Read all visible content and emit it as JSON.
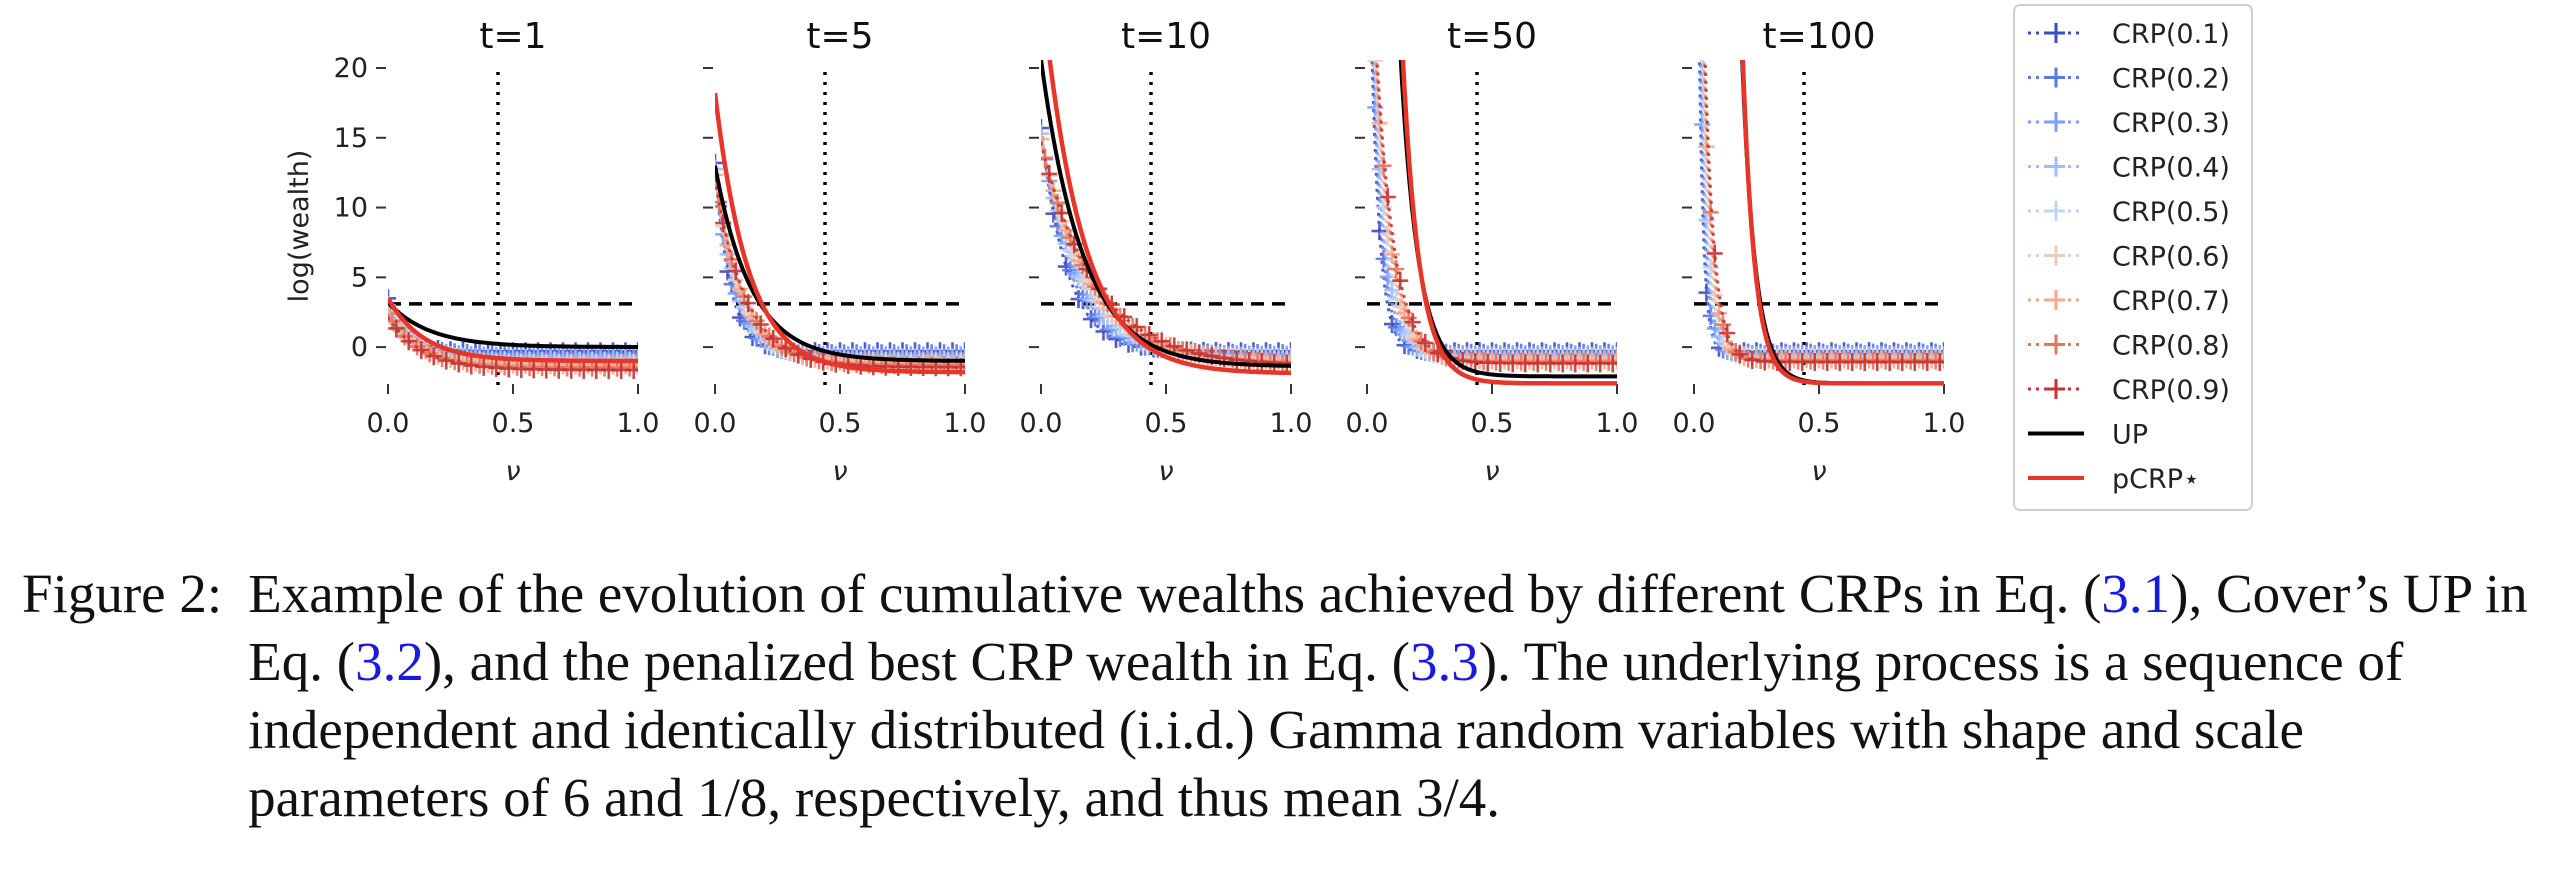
{
  "chart_data": {
    "type": "line",
    "ylabel": "log(wealth)",
    "xlabel": "ν",
    "xlim": [
      0.0,
      1.0
    ],
    "ylim": [
      -2.5,
      20
    ],
    "xticks": [
      "0.0",
      "0.5",
      "1.0"
    ],
    "yticks": [
      "20",
      "15",
      "10",
      "5",
      "0"
    ],
    "ytick_values": [
      20,
      15,
      10,
      5,
      0
    ],
    "reference_vertical_x": 0.44,
    "reference_horizontal_y": 3.1,
    "panels": [
      {
        "title": "t=1",
        "t": 1
      },
      {
        "title": "t=5",
        "t": 5
      },
      {
        "title": "t=10",
        "t": 10
      },
      {
        "title": "t=50",
        "t": 50
      },
      {
        "title": "t=100",
        "t": 100
      }
    ],
    "series": [
      {
        "name": "CRP(0.1)",
        "style": "dotted-plus",
        "color": "#3b4cc0"
      },
      {
        "name": "CRP(0.2)",
        "style": "dotted-plus",
        "color": "#5a78e4"
      },
      {
        "name": "CRP(0.3)",
        "style": "dotted-plus",
        "color": "#7b9ff9"
      },
      {
        "name": "CRP(0.4)",
        "style": "dotted-plus",
        "color": "#9ebeff"
      },
      {
        "name": "CRP(0.5)",
        "style": "dotted-plus",
        "color": "#c0d4f5"
      },
      {
        "name": "CRP(0.6)",
        "style": "dotted-plus",
        "color": "#f2cbb7"
      },
      {
        "name": "CRP(0.7)",
        "style": "dotted-plus",
        "color": "#f7a889"
      },
      {
        "name": "CRP(0.8)",
        "style": "dotted-plus",
        "color": "#e7745b"
      },
      {
        "name": "CRP(0.9)",
        "style": "dotted-plus",
        "color": "#c53334"
      },
      {
        "name": "UP",
        "style": "solid",
        "color": "#000000"
      },
      {
        "name": "pCRP⋆",
        "style": "solid",
        "color": "#e8352a"
      }
    ]
  },
  "caption": {
    "label": "Figure 2:",
    "parts": [
      "Example of the evolution of cumulative wealths achieved by different CRPs in Eq. (",
      "3.1",
      "), Cover’s UP in Eq. (",
      "3.2",
      "), and the penalized best CRP wealth in Eq. (",
      "3.3",
      "). The underlying process is a sequence of independent and identically distributed (i.i.d.) Gamma random variables with shape and scale parameters of 6 and 1/8, respectively, and thus mean 3/4."
    ]
  }
}
